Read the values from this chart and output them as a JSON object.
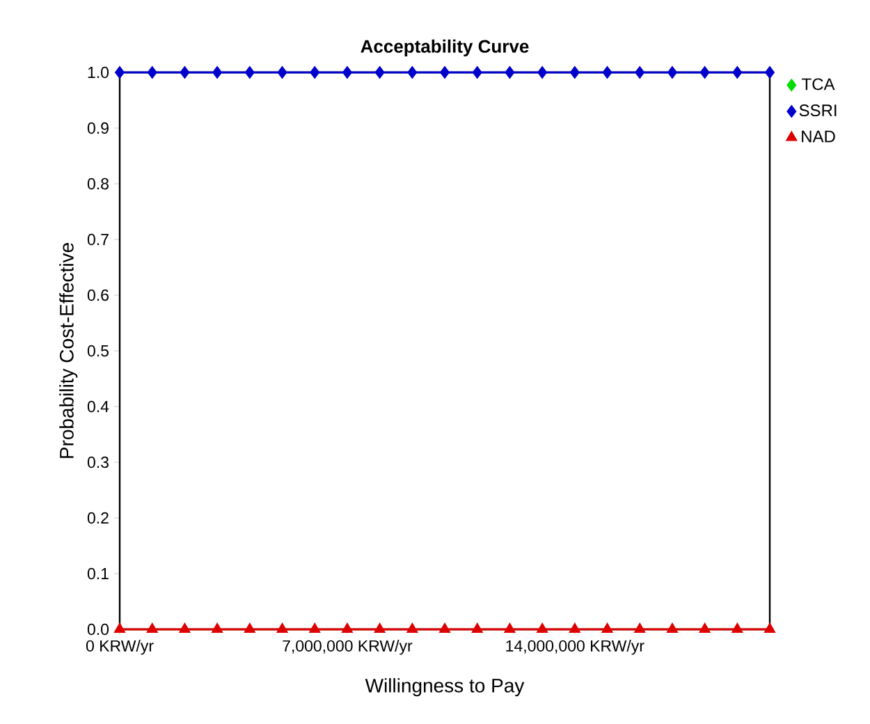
{
  "chart_data": {
    "type": "line",
    "title": "Acceptability Curve",
    "xlabel": "Willingness to Pay",
    "ylabel": "Probability Cost-Effective",
    "x": [
      0,
      1000000,
      2000000,
      3000000,
      4000000,
      5000000,
      6000000,
      7000000,
      8000000,
      9000000,
      10000000,
      11000000,
      12000000,
      13000000,
      14000000,
      15000000,
      16000000,
      17000000,
      18000000,
      19000000,
      20000000
    ],
    "series": [
      {
        "name": "TCA",
        "color": "#00dd00",
        "marker": "diamond",
        "values": [
          null,
          null,
          null,
          null,
          null,
          null,
          null,
          null,
          null,
          null,
          null,
          null,
          null,
          null,
          null,
          null,
          null,
          null,
          null,
          null,
          null
        ]
      },
      {
        "name": "SSRI",
        "color": "#0000cc",
        "marker": "diamond",
        "values": [
          1,
          1,
          1,
          1,
          1,
          1,
          1,
          1,
          1,
          1,
          1,
          1,
          1,
          1,
          1,
          1,
          1,
          1,
          1,
          1,
          1
        ]
      },
      {
        "name": "NAD",
        "color": "#dd0000",
        "marker": "triangle",
        "values": [
          0,
          0,
          0,
          0,
          0,
          0,
          0,
          0,
          0,
          0,
          0,
          0,
          0,
          0,
          0,
          0,
          0,
          0,
          0,
          0,
          0
        ]
      }
    ],
    "xlim": [
      0,
      20000000
    ],
    "xticks": [
      {
        "value": 0,
        "label": "0 KRW/yr"
      },
      {
        "value": 7000000,
        "label": "7,000,000 KRW/yr"
      },
      {
        "value": 14000000,
        "label": "14,000,000 KRW/yr"
      }
    ],
    "ylim": [
      0,
      1
    ],
    "yticks": [
      {
        "value": 0,
        "label": "0.0"
      },
      {
        "value": 0.1,
        "label": "0.1"
      },
      {
        "value": 0.2,
        "label": "0.2"
      },
      {
        "value": 0.3,
        "label": "0.3"
      },
      {
        "value": 0.4,
        "label": "0.4"
      },
      {
        "value": 0.5,
        "label": "0.5"
      },
      {
        "value": 0.6,
        "label": "0.6"
      },
      {
        "value": 0.7,
        "label": "0.7"
      },
      {
        "value": 0.8,
        "label": "0.8"
      },
      {
        "value": 0.9,
        "label": "0.9"
      },
      {
        "value": 1,
        "label": "1.0"
      }
    ],
    "legend": "top right"
  }
}
